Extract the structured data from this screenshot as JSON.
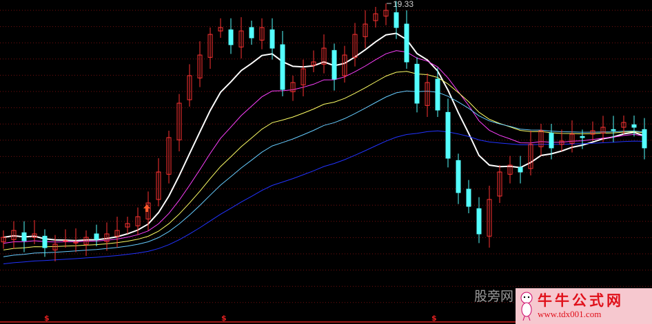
{
  "chart_data": {
    "type": "candlestick",
    "title": "",
    "high_label": "19.33",
    "closes": [
      9.13,
      9.43,
      8.98,
      9.28,
      8.68,
      8.83,
      8.98,
      8.92,
      9.13,
      9.04,
      9.28,
      9.43,
      9.73,
      10.03,
      10.63,
      11.98,
      13.48,
      14.98,
      16.18,
      17.08,
      17.98,
      18.28,
      17.53,
      18.13,
      17.83,
      18.28,
      17.38,
      15.58,
      15.88,
      16.48,
      16.78,
      17.38,
      16.03,
      17.08,
      17.98,
      18.43,
      18.88,
      19.03,
      18.28,
      16.78,
      14.98,
      15.88,
      14.68,
      12.58,
      11.08,
      10.48,
      9.28,
      10.78,
      11.98,
      12.28,
      11.98,
      13.18,
      13.78,
      13.03,
      13.33,
      13.63,
      13.48,
      13.78,
      13.93,
      13.78,
      14.14,
      13.93,
      13.03
    ],
    "grid": true,
    "colors": {
      "up": "#ff3232",
      "down": "#54ffff",
      "grid": "#7a1010",
      "ma_lines": [
        "#ffffff",
        "#ff40ff",
        "#ffff66",
        "#66ccff",
        "#2233ff"
      ]
    },
    "signal_marker": "$",
    "signal_indices": [
      4,
      21,
      41
    ]
  },
  "watermark": {
    "site_text": "股旁网",
    "logo_title": "牛牛公式网",
    "logo_url": "www.tdx001.com"
  }
}
